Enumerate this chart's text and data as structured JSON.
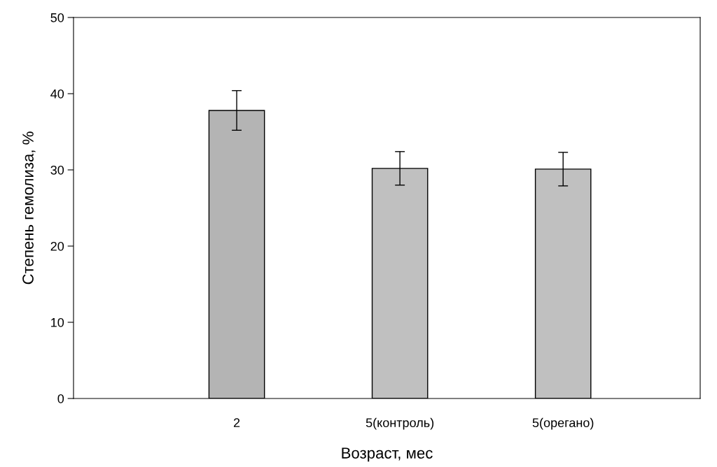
{
  "chart_data": {
    "type": "bar",
    "xlabel": "Возраст, мес",
    "ylabel": "Степень гемолиза, %",
    "categories": [
      "2",
      "5(контроль)",
      "5(орегано)"
    ],
    "values": [
      37.8,
      30.2,
      30.1
    ],
    "errors": [
      2.6,
      2.2,
      2.2
    ],
    "colors": [
      "#b4b4b4",
      "#c0c0c0",
      "#c0c0c0"
    ],
    "ylim": [
      0,
      50
    ],
    "yticks": [
      0,
      10,
      20,
      30,
      40,
      50
    ],
    "grid": false,
    "legend": false
  }
}
